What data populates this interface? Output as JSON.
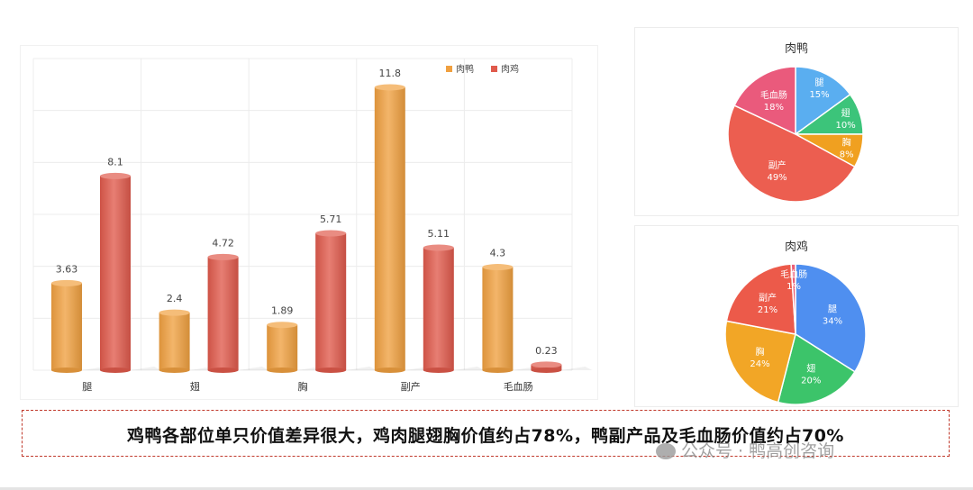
{
  "chart_data": [
    {
      "type": "bar",
      "categories": [
        "腿",
        "翅",
        "胸",
        "副产",
        "毛血肠"
      ],
      "series": [
        {
          "name": "肉鸭",
          "values": [
            3.63,
            2.4,
            1.89,
            11.8,
            4.3
          ],
          "color": "#f0a040"
        },
        {
          "name": "肉鸡",
          "values": [
            8.1,
            4.72,
            5.71,
            5.11,
            0.23
          ],
          "color": "#e05a4c"
        }
      ],
      "ylim": [
        0,
        13
      ],
      "grid": true,
      "legend": "top-right",
      "data_labels": true
    },
    {
      "type": "pie",
      "title": "肉鸭",
      "slices": [
        {
          "label": "腿",
          "value": 15,
          "display": "15%",
          "color": "#5aaef0"
        },
        {
          "label": "翅",
          "value": 10,
          "display": "10%",
          "color": "#3cc47a"
        },
        {
          "label": "胸",
          "value": 8,
          "display": "8%",
          "color": "#f0a020"
        },
        {
          "label": "副产",
          "value": 49,
          "display": "49%",
          "color": "#ec5e50"
        },
        {
          "label": "毛血肠",
          "value": 18,
          "display": "18%",
          "color": "#ea5a7c"
        }
      ]
    },
    {
      "type": "pie",
      "title": "肉鸡",
      "slices": [
        {
          "label": "腿",
          "value": 34,
          "display": "34%",
          "color": "#4f8ff0"
        },
        {
          "label": "翅",
          "value": 20,
          "display": "20%",
          "color": "#3cc46a"
        },
        {
          "label": "胸",
          "value": 24,
          "display": "24%",
          "color": "#f2a626"
        },
        {
          "label": "副产",
          "value": 21,
          "display": "21%",
          "color": "#ec5a4a"
        },
        {
          "label": "毛血肠",
          "value": 1,
          "display": "1%",
          "color": "#ea6078"
        }
      ]
    }
  ],
  "caption": "鸡鸭各部位单只价值差异很大，鸡肉腿翅胸价值约占78%，鸭副产品及毛血肠价值约占70%",
  "watermark": "公众号 · 鸭高创咨询"
}
